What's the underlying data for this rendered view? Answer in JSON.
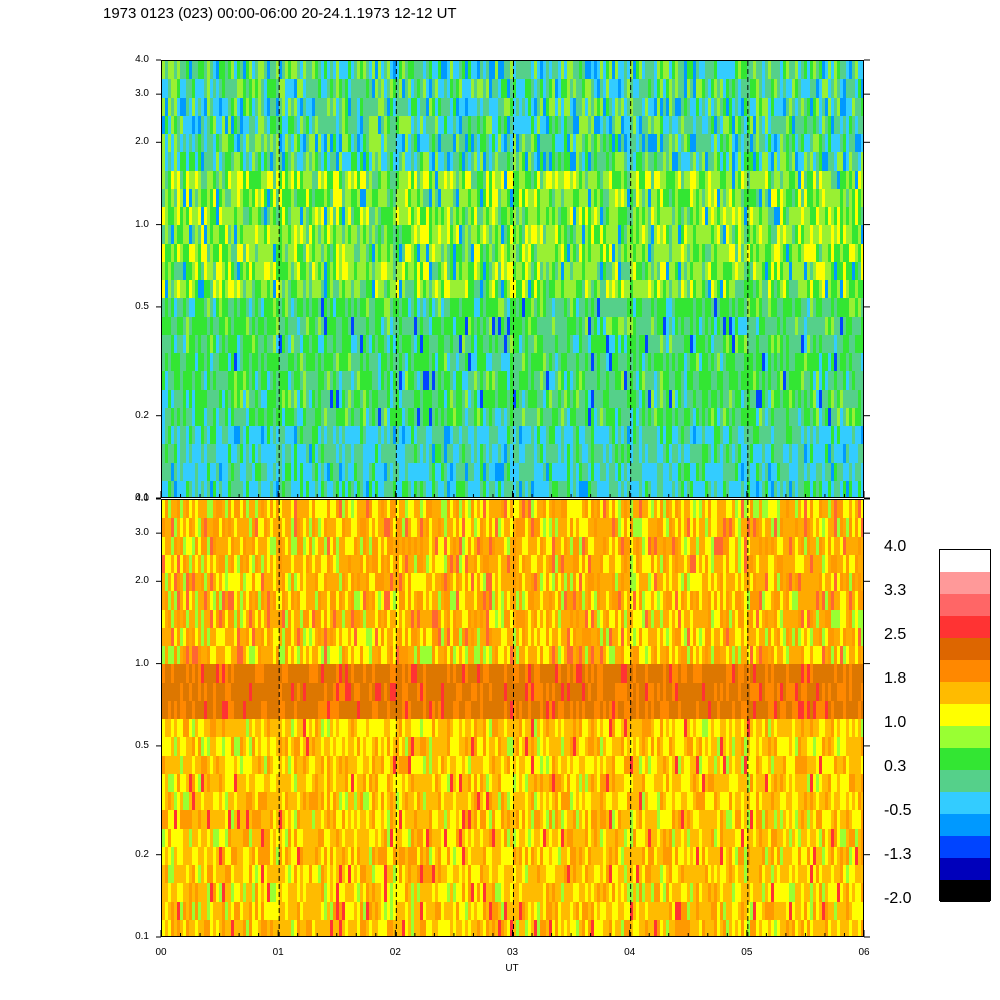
{
  "title": "1973 0123 (023) 00:00-06:00 20-24.1.1973  12-12 UT",
  "chart_data": {
    "type": "heatmap",
    "panels": [
      {
        "name": "top",
        "ylim": [
          0.1,
          4.0
        ],
        "yscale": "log",
        "ytick_labels": [
          "4.0",
          "3.0",
          "2.0",
          "1.0",
          "0.5",
          "0.2",
          "0.1"
        ],
        "ytick_values": [
          4.0,
          3.0,
          2.0,
          1.0,
          0.5,
          0.2,
          0.1
        ],
        "description_bands": [
          {
            "from": 0.1,
            "to": 0.45,
            "dominant": "#38cc8c"
          },
          {
            "from": 0.45,
            "to": 1.0,
            "dominant": "#33e633"
          },
          {
            "from": 1.0,
            "to": 2.5,
            "dominant": "#99f033"
          },
          {
            "from": 2.5,
            "to": 4.0,
            "dominant": "#50d09a"
          }
        ]
      },
      {
        "name": "bottom",
        "ylim": [
          0.1,
          4.0
        ],
        "yscale": "log",
        "ytick_labels": [
          "4.0",
          "3.0",
          "2.0",
          "1.0",
          "0.5",
          "0.2",
          "0.1"
        ],
        "ytick_values": [
          4.0,
          3.0,
          2.0,
          1.0,
          0.5,
          0.2,
          0.1
        ],
        "description_bands": [
          {
            "from": 0.1,
            "to": 0.65,
            "dominant": "#ffbb00"
          },
          {
            "from": 0.65,
            "to": 0.95,
            "dominant": "#dd7700"
          },
          {
            "from": 0.95,
            "to": 4.0,
            "dominant": "#ffaa00"
          }
        ]
      }
    ],
    "x_range": [
      "00",
      "06"
    ],
    "x_tick_labels": [
      "00",
      "01",
      "02",
      "03",
      "04",
      "05",
      "06"
    ],
    "xlabel": "UT",
    "dashed_lines_at_hours": [
      1,
      2,
      3,
      4,
      5
    ],
    "colorbar": {
      "labels": [
        "4.0",
        "3.3",
        "2.5",
        "1.8",
        "1.0",
        "0.3",
        "-0.5",
        "-1.3",
        "-2.0"
      ],
      "colors": [
        "#ffffff",
        "#ff9999",
        "#ff6666",
        "#ff3333",
        "#dd6600",
        "#ff8800",
        "#ffbb00",
        "#ffff00",
        "#99ff33",
        "#33e633",
        "#55d08a",
        "#33ccff",
        "#0099ff",
        "#0044ff",
        "#0000bb",
        "#000000"
      ]
    }
  }
}
